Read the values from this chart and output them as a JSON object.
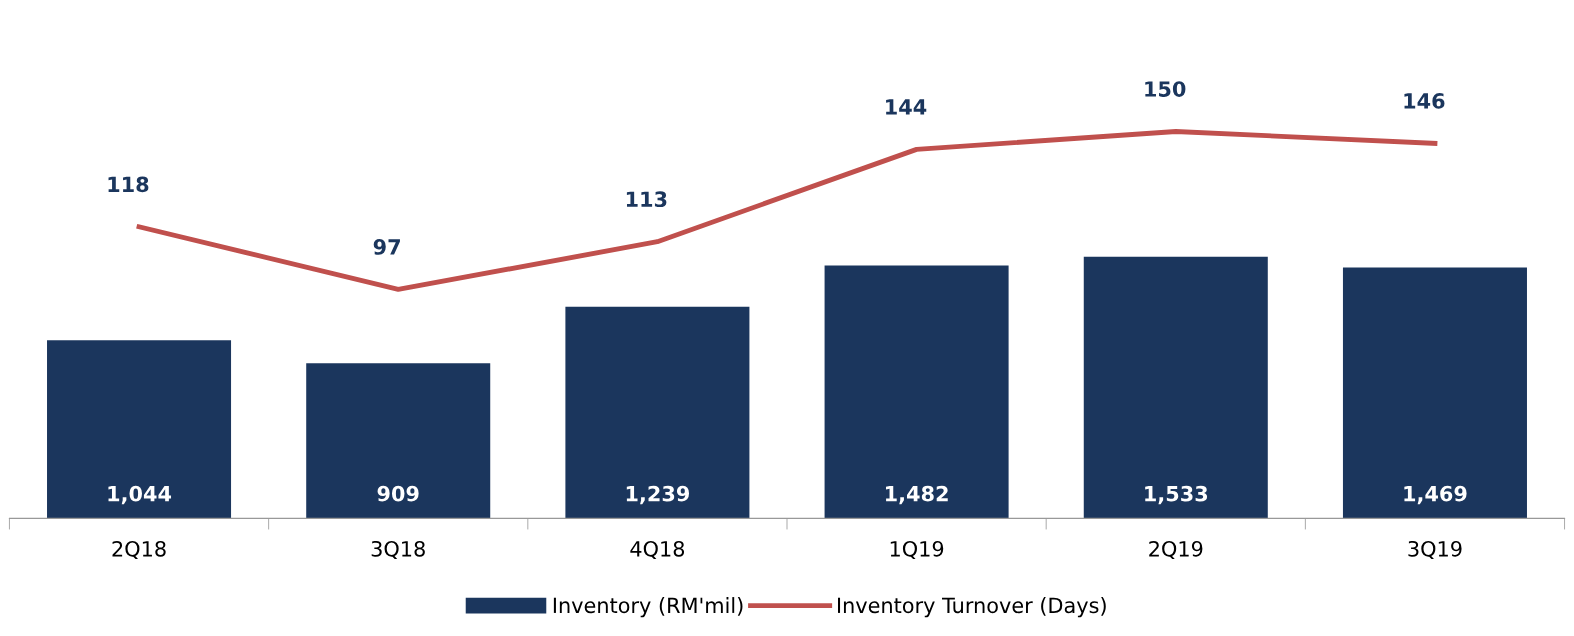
{
  "chart_data": {
    "type": "bar",
    "categories": [
      "2Q18",
      "3Q18",
      "4Q18",
      "1Q19",
      "2Q19",
      "3Q19"
    ],
    "series": [
      {
        "name": "Inventory (RM'mil)",
        "color": "#1b365d",
        "values": [
          1044,
          909,
          1239,
          1482,
          1533,
          1469
        ],
        "value_labels": [
          "1,044",
          "909",
          "1,239",
          "1,482",
          "1,533",
          "1,469"
        ]
      },
      {
        "name": "Inventory Turnover (Days)",
        "type": "line",
        "axis": "y2",
        "color": "#c0504d",
        "values": [
          118,
          97,
          113,
          144,
          150,
          146
        ],
        "value_labels": [
          "118",
          "97",
          "113",
          "144",
          "150",
          "146"
        ]
      }
    ],
    "legend": "bottom",
    "tick_labels": "x",
    "marker": "none",
    "line_style": "solid"
  }
}
